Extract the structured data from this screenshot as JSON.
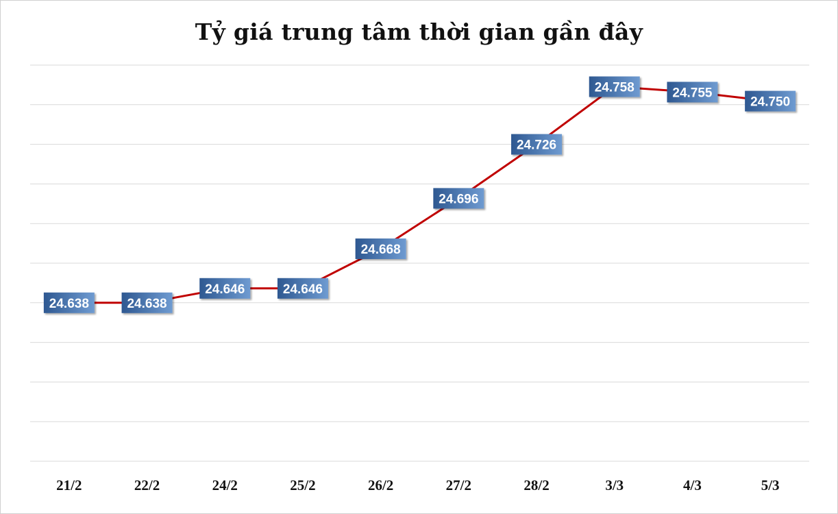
{
  "chart_data": {
    "type": "line",
    "title": "Tỷ giá trung tâm thời gian gần đây",
    "xlabel": "",
    "ylabel": "",
    "categories": [
      "21/2",
      "22/2",
      "24/2",
      "25/2",
      "26/2",
      "27/2",
      "28/2",
      "3/3",
      "4/3",
      "5/3"
    ],
    "series": [
      {
        "values": [
          24638,
          24638,
          24646,
          24646,
          24668,
          24696,
          24726,
          24758,
          24755,
          24750
        ],
        "labels": [
          "24.638",
          "24.638",
          "24.646",
          "24.646",
          "24.668",
          "24.696",
          "24.726",
          "24.758",
          "24.755",
          "24.750"
        ]
      }
    ],
    "ylim": [
      24550,
      24770
    ],
    "grid": true,
    "y_tick_labels_shown": false,
    "legend": "none",
    "colors": {
      "line": "#c00000",
      "label_box_dark": "#2e5891",
      "label_box_light": "#6f9bd1",
      "label_text": "#ffffff",
      "gridline": "#d9d9d9"
    }
  }
}
